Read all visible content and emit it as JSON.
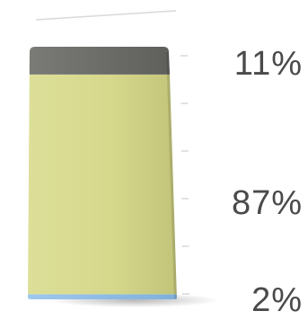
{
  "chart_data": {
    "type": "bar",
    "stacked": true,
    "percent_stacked": true,
    "style": "3d",
    "categories": [
      ""
    ],
    "series": [
      {
        "values": [
          2
        ],
        "color": "#8fbce6",
        "label": "2%"
      },
      {
        "values": [
          87
        ],
        "color": "#d2d48a",
        "label": "87%"
      },
      {
        "values": [
          11
        ],
        "color": "#6e6e6a",
        "label": "11%"
      }
    ],
    "title": "",
    "xlabel": "",
    "ylabel": "",
    "ylim": [
      0,
      100
    ],
    "grid": false,
    "legend": "none"
  }
}
